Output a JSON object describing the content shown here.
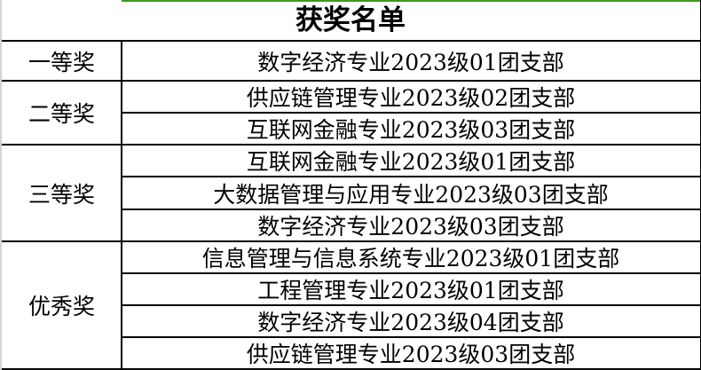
{
  "title": "获奖名单",
  "groups": [
    {
      "award": "一等奖",
      "units": [
        "数字经济专业2023级01团支部"
      ]
    },
    {
      "award": "二等奖",
      "units": [
        "供应链管理专业2023级02团支部",
        "互联网金融专业2023级03团支部"
      ]
    },
    {
      "award": "三等奖",
      "units": [
        "互联网金融专业2023级01团支部",
        "大数据管理与应用专业2023级03团支部",
        "数字经济专业2023级03团支部"
      ]
    },
    {
      "award": "优秀奖",
      "units": [
        "信息管理与信息系统专业2023级01团支部",
        "工程管理专业2023级01团支部",
        "数字经济专业2023级04团支部",
        "供应链管理专业2023级03团支部"
      ]
    }
  ]
}
